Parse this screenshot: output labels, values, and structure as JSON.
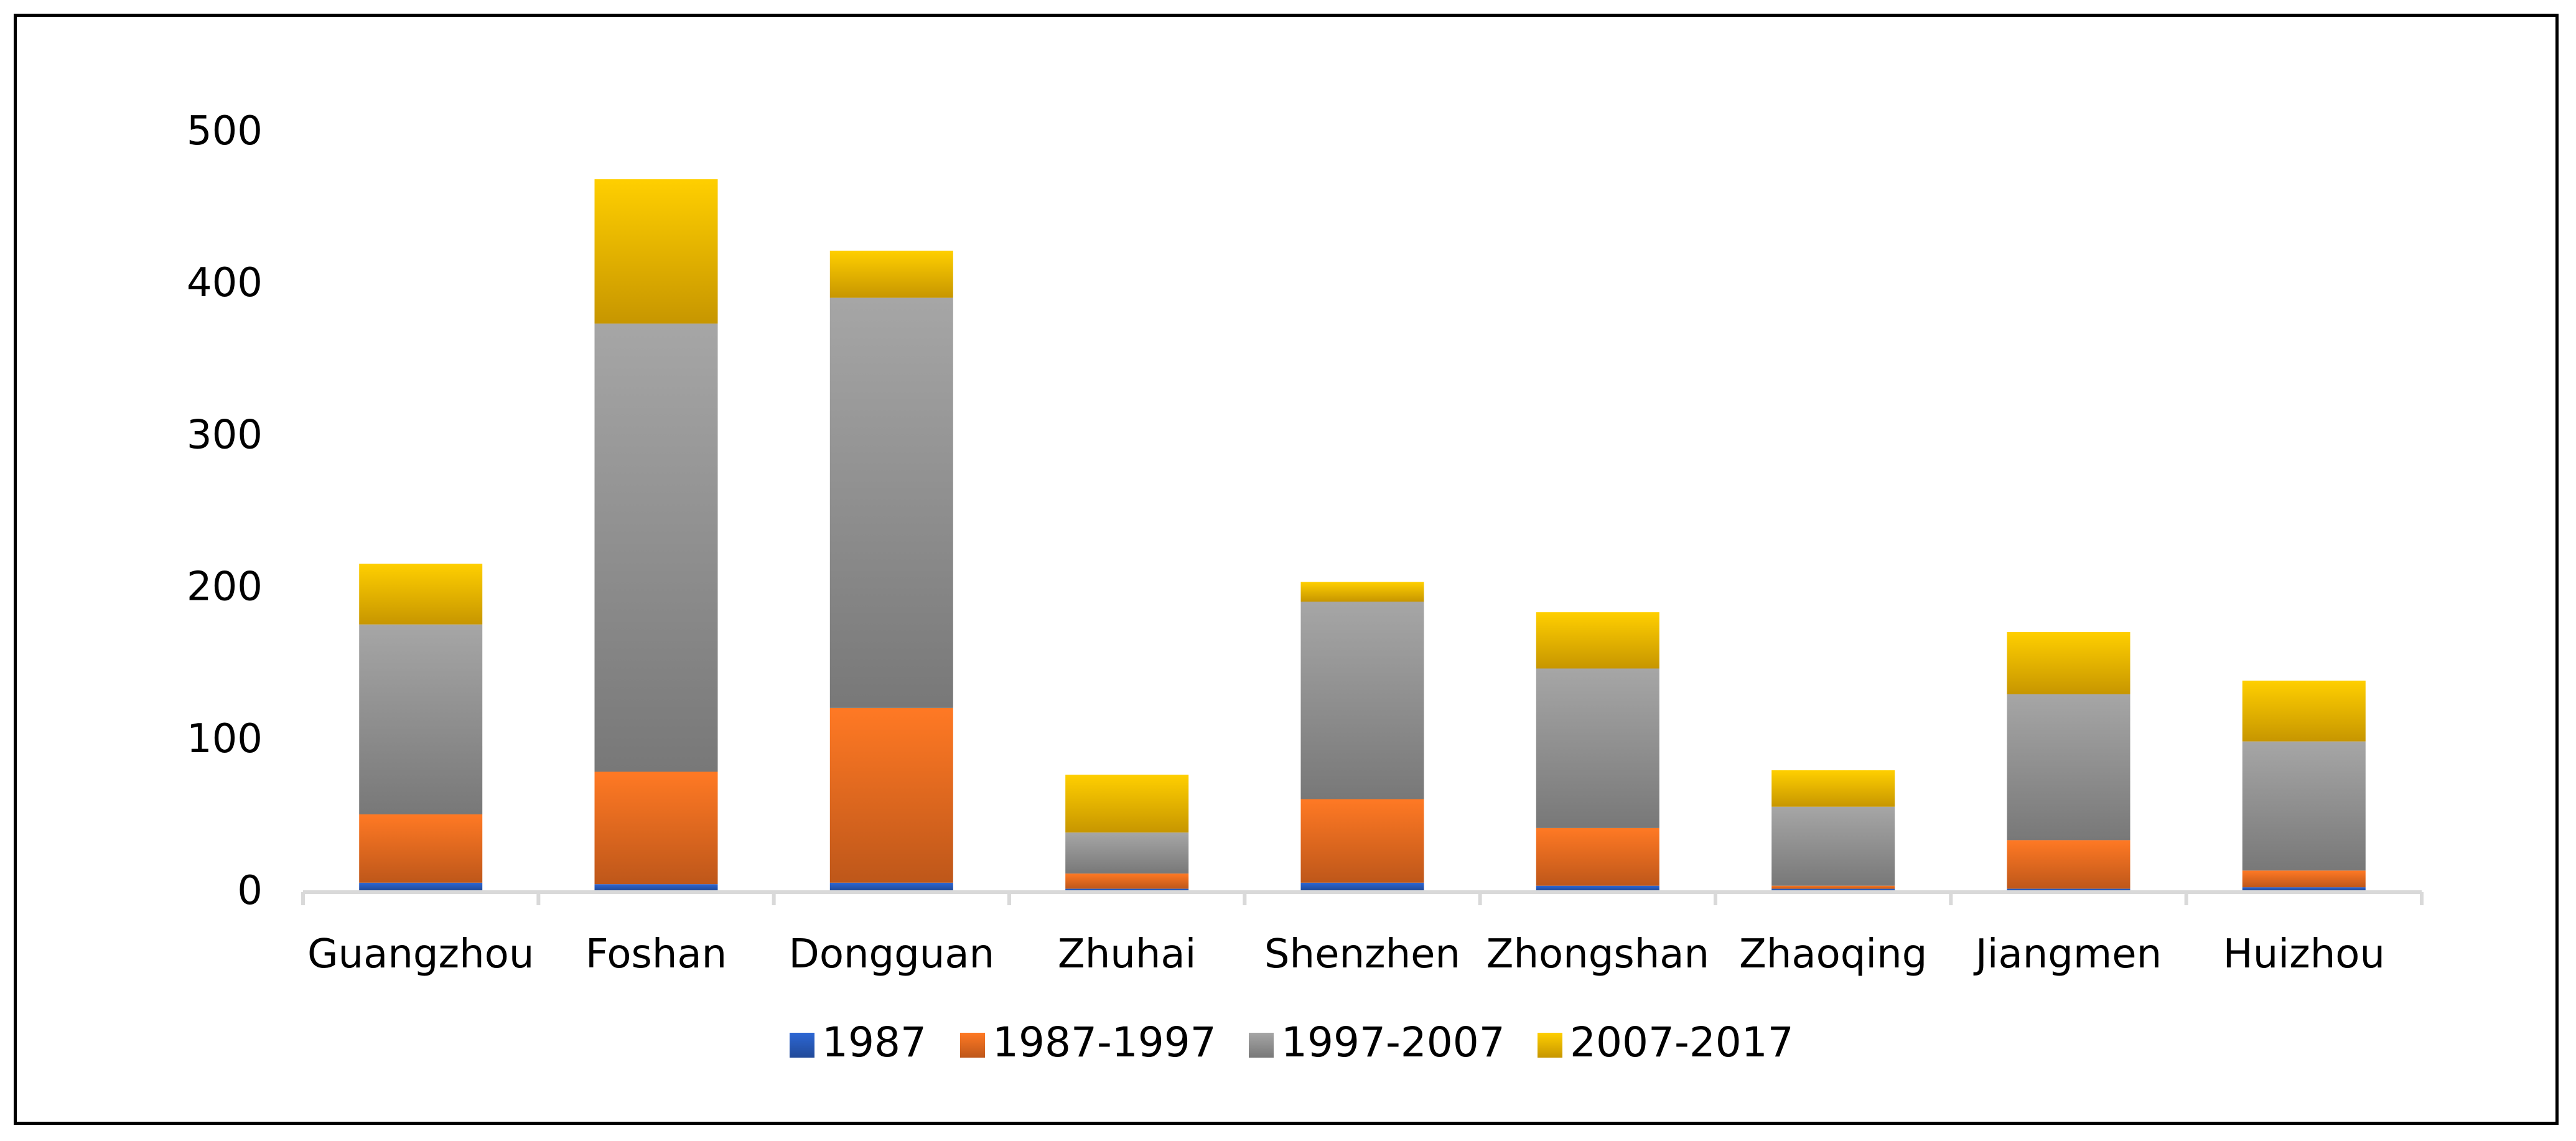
{
  "chart_data": {
    "type": "bar",
    "stacked": true,
    "title": "",
    "xlabel": "",
    "ylabel": "",
    "ylim": [
      0,
      500
    ],
    "yticks": [
      0,
      100,
      200,
      300,
      400,
      500
    ],
    "grid": false,
    "legend_position": "bottom",
    "categories": [
      "Guangzhou",
      "Foshan",
      "Dongguan",
      "Zhuhai",
      "Shenzhen",
      "Zhongshan",
      "Zhaoqing",
      "Jiangmen",
      "Huizhou"
    ],
    "series": [
      {
        "name": "1987",
        "color": "#2a5fc4",
        "values": [
          5,
          4,
          5,
          1,
          5,
          3,
          1,
          1,
          2
        ]
      },
      {
        "name": "1987-1997",
        "color": "#f37021",
        "values": [
          45,
          74,
          115,
          10,
          55,
          38,
          2,
          32,
          11
        ]
      },
      {
        "name": "1997-2007",
        "color": "#9a9a9a",
        "values": [
          125,
          295,
          270,
          27,
          130,
          105,
          52,
          96,
          85
        ]
      },
      {
        "name": "2007-2017",
        "color": "#ffc000",
        "values": [
          40,
          95,
          31,
          38,
          13,
          37,
          24,
          41,
          40
        ]
      }
    ]
  }
}
